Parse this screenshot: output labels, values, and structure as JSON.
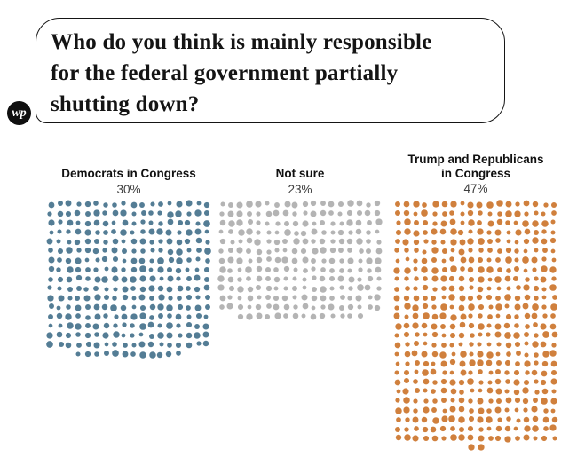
{
  "brand": {
    "logo_text": "wp",
    "logo_color": "#101010"
  },
  "question": {
    "text": "Who do you think is mainly responsible for the federal government partially shutting down?",
    "lines": [
      "Who do you think is mainly responsible",
      "for the federal government partially",
      "shutting down?"
    ]
  },
  "chart_data": {
    "type": "waffle-dot",
    "title": "Who do you think is mainly responsible for the federal government partially shutting down?",
    "unit": "each dot = 0.1 percentage point",
    "dots_per_row": 18,
    "categories": [
      {
        "label": "Democrats in Congress",
        "value_pct": 30,
        "value_label": "30%",
        "dots": 300,
        "color": "#547d95"
      },
      {
        "label": "Not sure",
        "value_pct": 23,
        "value_label": "23%",
        "dots": 230,
        "color": "#b4b4b4"
      },
      {
        "label": "Trump and Republicans in Congress",
        "label_lines": [
          "Trump and Republicans",
          "in Congress"
        ],
        "value_pct": 47,
        "value_label": "47%",
        "dots": 470,
        "color": "#d0803d"
      }
    ]
  }
}
